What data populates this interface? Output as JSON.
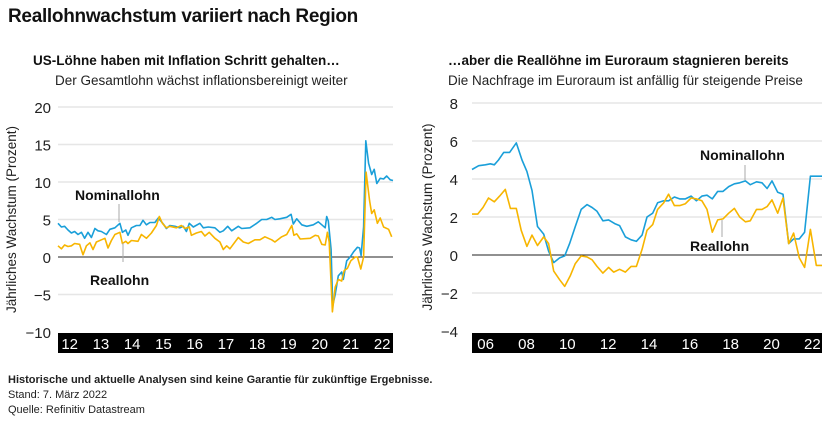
{
  "title": "Reallohnwachstum variiert nach Region",
  "colors": {
    "nominal": "#1a9fd9",
    "real": "#f7b500",
    "axis_band": "#000000",
    "grid": "#e6e6e6"
  },
  "footer": {
    "disclaimer": "Historische und aktuelle Analysen sind keine Garantie für zukünftige Ergebnisse.",
    "date": "Stand: 7. März 2022",
    "source": "Quelle: Refinitiv Datastream"
  },
  "chart_data": [
    {
      "type": "line",
      "title": "US-Löhne haben mit Inflation Schritt gehalten…",
      "subtitle": "Der Gesamtlohn wächst inflationsbereinigt weiter",
      "ylabel": "Jährliches Wachstum (Prozent)",
      "ylim": [
        -10,
        20
      ],
      "yticks": [
        -10,
        -5,
        0,
        5,
        10,
        15,
        20
      ],
      "xlim": [
        2011.69,
        2022.41
      ],
      "xticks": [
        2012,
        2013,
        2014,
        2015,
        2016,
        2017,
        2018,
        2019,
        2020,
        2021,
        2022
      ],
      "xtick_labels": [
        "12",
        "13",
        "14",
        "15",
        "16",
        "17",
        "18",
        "19",
        "20",
        "21",
        "22"
      ],
      "grid": true,
      "series": [
        {
          "name": "Nominallohn",
          "color": "#1a9fd9",
          "x": [
            2011.69,
            2011.8,
            2011.9,
            2012.01,
            2012.12,
            2012.22,
            2012.33,
            2012.44,
            2012.54,
            2012.65,
            2012.76,
            2012.87,
            2012.97,
            2013.08,
            2013.24,
            2013.35,
            2013.51,
            2013.67,
            2013.75,
            2013.86,
            2013.93,
            2014.04,
            2014.2,
            2014.31,
            2014.41,
            2014.52,
            2014.63,
            2014.79,
            2014.9,
            2015.06,
            2015.16,
            2015.27,
            2015.43,
            2015.59,
            2015.7,
            2015.8,
            2015.89,
            2016.02,
            2016.23,
            2016.34,
            2016.5,
            2016.71,
            2016.87,
            2016.98,
            2017.12,
            2017.25,
            2017.46,
            2017.57,
            2017.83,
            2018.05,
            2018.21,
            2018.37,
            2018.53,
            2018.63,
            2018.79,
            2019.01,
            2019.15,
            2019.22,
            2019.33,
            2019.49,
            2019.65,
            2019.86,
            2020.02,
            2020.13,
            2020.24,
            2020.29,
            2020.34,
            2020.43,
            2020.48,
            2020.56,
            2020.66,
            2020.77,
            2020.82,
            2020.93,
            2021.04,
            2021.15,
            2021.27,
            2021.34,
            2021.39,
            2021.47,
            2021.54,
            2021.63,
            2021.73,
            2021.81,
            2021.89,
            2022.0,
            2022.11,
            2022.21,
            2022.32,
            2022.41
          ],
          "y": [
            4.5,
            4.0,
            4.1,
            3.6,
            3.2,
            3.4,
            3.0,
            3.3,
            2.5,
            3.3,
            2.6,
            3.8,
            3.5,
            3.4,
            3.0,
            3.7,
            3.9,
            4.5,
            3.3,
            3.6,
            2.9,
            3.9,
            4.2,
            4.2,
            4.9,
            4.3,
            4.6,
            4.6,
            5.2,
            4.4,
            3.8,
            4.2,
            4.1,
            3.9,
            4.1,
            3.4,
            4.5,
            4.0,
            4.5,
            3.9,
            4.0,
            3.9,
            3.3,
            3.5,
            4.1,
            3.5,
            4.1,
            3.8,
            3.9,
            4.5,
            5.0,
            5.0,
            5.3,
            5.0,
            5.1,
            5.3,
            5.7,
            4.4,
            5.1,
            4.3,
            4.1,
            4.3,
            4.7,
            4.3,
            3.9,
            5.4,
            4.8,
            1.0,
            -6.5,
            -5.0,
            -2.5,
            -2.0,
            -3.0,
            -0.5,
            0.0,
            0.7,
            1.3,
            1.2,
            0.2,
            4.0,
            15.5,
            12.5,
            11.0,
            11.7,
            9.8,
            10.5,
            10.4,
            10.8,
            10.3,
            10.2
          ]
        },
        {
          "name": "Reallohn",
          "color": "#f7b500",
          "x": [
            2011.69,
            2011.8,
            2011.9,
            2012.01,
            2012.12,
            2012.22,
            2012.38,
            2012.49,
            2012.6,
            2012.71,
            2012.81,
            2012.92,
            2013.08,
            2013.19,
            2013.29,
            2013.4,
            2013.51,
            2013.67,
            2013.75,
            2013.86,
            2013.93,
            2014.04,
            2014.25,
            2014.36,
            2014.52,
            2014.68,
            2014.84,
            2014.93,
            2015.03,
            2015.16,
            2015.27,
            2015.48,
            2015.64,
            2015.75,
            2015.89,
            2015.96,
            2016.12,
            2016.28,
            2016.39,
            2016.53,
            2016.71,
            2016.87,
            2016.98,
            2017.09,
            2017.19,
            2017.46,
            2017.62,
            2017.78,
            2017.99,
            2018.15,
            2018.31,
            2018.53,
            2018.63,
            2018.85,
            2019.01,
            2019.17,
            2019.24,
            2019.33,
            2019.44,
            2019.76,
            2019.92,
            2020.02,
            2020.13,
            2020.24,
            2020.31,
            2020.37,
            2020.47,
            2020.56,
            2020.66,
            2020.77,
            2020.85,
            2020.95,
            2021.06,
            2021.2,
            2021.27,
            2021.38,
            2021.47,
            2021.55,
            2021.66,
            2021.73,
            2021.81,
            2021.91,
            2022.0,
            2022.11,
            2022.27,
            2022.37
          ],
          "y": [
            1.5,
            1.1,
            1.6,
            1.4,
            1.5,
            1.8,
            1.7,
            0.3,
            1.5,
            1.9,
            1.0,
            2.0,
            2.3,
            2.5,
            1.2,
            2.2,
            3.0,
            3.3,
            1.8,
            2.1,
            1.8,
            2.2,
            2.1,
            3.0,
            2.5,
            3.2,
            4.2,
            5.4,
            4.5,
            3.9,
            4.1,
            3.9,
            4.2,
            3.8,
            4.0,
            2.9,
            3.2,
            3.4,
            2.8,
            3.3,
            2.5,
            2.0,
            1.0,
            1.5,
            1.1,
            2.6,
            2.0,
            1.8,
            2.3,
            2.3,
            2.7,
            2.3,
            2.0,
            2.7,
            3.0,
            4.2,
            2.9,
            3.1,
            2.4,
            2.5,
            2.9,
            2.8,
            1.7,
            1.6,
            3.3,
            2.0,
            -7.3,
            -4.0,
            -3.0,
            -3.2,
            -1.8,
            -1.5,
            -0.5,
            0.0,
            0.0,
            -1.6,
            0.0,
            11.3,
            7.5,
            5.8,
            6.3,
            4.5,
            5.2,
            4.0,
            3.7,
            2.7
          ]
        }
      ]
    },
    {
      "type": "line",
      "title": "…aber die Reallöhne im Euroraum stagnieren bereits",
      "subtitle": "Die Nachfrage im Euroraum ist anfällig für steigende Preise",
      "ylabel": "Jährliches Wachstum (Prozent)",
      "ylim": [
        -4,
        8
      ],
      "yticks": [
        -4,
        -2,
        0,
        2,
        4,
        6,
        8
      ],
      "xlim": [
        2005.43,
        2022.57
      ],
      "xticks": [
        2006,
        2008,
        2010,
        2012,
        2014,
        2016,
        2018,
        2020,
        2022
      ],
      "xtick_labels": [
        "06",
        "08",
        "10",
        "12",
        "14",
        "16",
        "18",
        "20",
        "22"
      ],
      "grid": true,
      "series": [
        {
          "name": "Nominallohn",
          "color": "#1a9fd9",
          "x": [
            2005.43,
            2005.76,
            2006.08,
            2006.33,
            2006.52,
            2006.73,
            2006.98,
            2007.27,
            2007.6,
            2007.88,
            2008.12,
            2008.37,
            2008.64,
            2008.94,
            2009.18,
            2009.43,
            2009.72,
            2009.97,
            2010.21,
            2010.49,
            2010.78,
            2011.06,
            2011.31,
            2011.55,
            2011.84,
            2012.12,
            2012.42,
            2012.66,
            2012.94,
            2013.22,
            2013.48,
            2013.76,
            2014.0,
            2014.28,
            2014.52,
            2014.82,
            2015.06,
            2015.34,
            2015.6,
            2015.88,
            2016.16,
            2016.42,
            2016.69,
            2016.94,
            2017.2,
            2017.46,
            2017.72,
            2018.0,
            2018.28,
            2018.54,
            2018.82,
            2019.06,
            2019.36,
            2019.63,
            2019.88,
            2020.12,
            2020.4,
            2020.66,
            2020.94,
            2021.18,
            2021.46,
            2021.72,
            2022.0,
            2022.57
          ],
          "y": [
            4.5,
            4.7,
            4.75,
            4.8,
            4.75,
            5.0,
            5.4,
            5.4,
            5.9,
            5.0,
            4.4,
            3.4,
            1.5,
            1.1,
            0.2,
            -0.4,
            -0.15,
            -0.05,
            0.6,
            1.5,
            2.4,
            2.65,
            2.5,
            2.3,
            1.8,
            1.85,
            1.65,
            1.55,
            0.95,
            0.8,
            0.72,
            1.05,
            2.0,
            2.2,
            2.75,
            2.85,
            2.85,
            3.05,
            2.95,
            2.95,
            3.1,
            2.85,
            3.1,
            3.15,
            2.95,
            3.35,
            3.35,
            3.6,
            3.75,
            3.8,
            3.9,
            3.7,
            3.85,
            3.8,
            3.5,
            3.9,
            3.3,
            3.2,
            0.6,
            0.85,
            0.85,
            1.2,
            4.15,
            4.15
          ]
        },
        {
          "name": "Reallohn",
          "color": "#f7b500",
          "x": [
            2005.43,
            2005.71,
            2005.97,
            2006.24,
            2006.52,
            2006.78,
            2007.06,
            2007.31,
            2007.6,
            2007.84,
            2008.12,
            2008.37,
            2008.64,
            2008.94,
            2009.18,
            2009.43,
            2009.72,
            2009.97,
            2010.24,
            2010.49,
            2010.78,
            2011.06,
            2011.31,
            2011.55,
            2011.84,
            2012.12,
            2012.37,
            2012.66,
            2012.94,
            2013.22,
            2013.48,
            2013.76,
            2014.0,
            2014.28,
            2014.52,
            2014.82,
            2015.06,
            2015.34,
            2015.6,
            2015.88,
            2016.16,
            2016.42,
            2016.69,
            2016.94,
            2017.2,
            2017.46,
            2017.72,
            2018.0,
            2018.28,
            2018.54,
            2018.82,
            2019.06,
            2019.36,
            2019.63,
            2019.88,
            2020.12,
            2020.4,
            2020.66,
            2020.94,
            2021.18,
            2021.46,
            2021.72,
            2022.0,
            2022.29,
            2022.57
          ],
          "y": [
            2.15,
            2.15,
            2.5,
            3.0,
            2.8,
            3.1,
            3.45,
            2.45,
            2.45,
            1.3,
            0.45,
            1.05,
            0.5,
            0.95,
            0.6,
            -0.85,
            -1.3,
            -1.65,
            -1.1,
            -0.45,
            -0.05,
            -0.1,
            -0.25,
            -0.6,
            -0.95,
            -0.65,
            -0.9,
            -0.75,
            -0.9,
            -0.6,
            -0.6,
            0.3,
            1.3,
            1.6,
            2.4,
            2.75,
            3.2,
            2.6,
            2.6,
            2.7,
            3.0,
            2.95,
            2.85,
            2.4,
            1.2,
            1.85,
            1.9,
            2.2,
            2.45,
            2.0,
            1.75,
            1.8,
            2.4,
            2.4,
            2.55,
            2.9,
            2.2,
            3.0,
            0.6,
            1.15,
            -0.15,
            -0.65,
            1.35,
            -0.55,
            -0.55
          ]
        }
      ]
    }
  ]
}
